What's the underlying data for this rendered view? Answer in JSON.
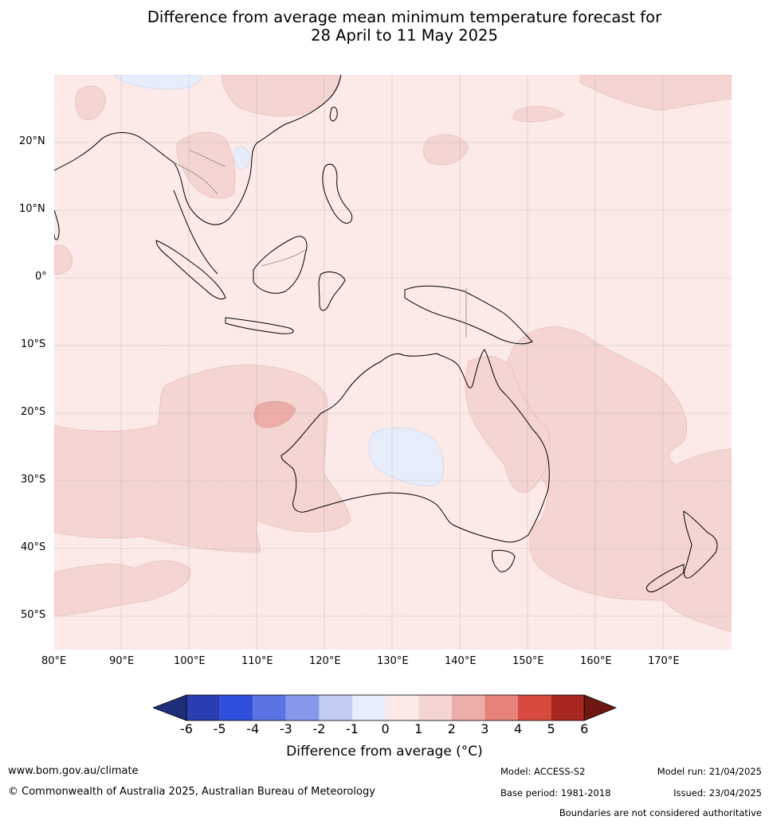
{
  "title": {
    "line1": "Difference from average mean minimum temperature forecast for",
    "line2": "28 April to 11 May 2025"
  },
  "map": {
    "lon_labels": [
      "80°E",
      "90°E",
      "100°E",
      "110°E",
      "120°E",
      "130°E",
      "140°E",
      "150°E",
      "160°E",
      "170°E"
    ],
    "lat_labels": [
      "20°N",
      "10°N",
      "0°",
      "10°S",
      "20°S",
      "30°S",
      "40°S",
      "50°S"
    ],
    "colors": {
      "bg_0_1": "#fbeae8",
      "c_1_2": "#f5d5d1",
      "c_2_3": "#ecaca8",
      "neg_0_1": "#e8edfb",
      "coast": "#000000",
      "border": "#888888",
      "grid": "#999999"
    }
  },
  "colorbar": {
    "ticks": [
      "-6",
      "-5",
      "-4",
      "-3",
      "-2",
      "-1",
      "0",
      "1",
      "2",
      "3",
      "4",
      "5",
      "6"
    ],
    "colors": [
      "#1f2e7a",
      "#2a3eb1",
      "#2f4fdc",
      "#5b74e3",
      "#8798ea",
      "#c2cbf4",
      "#e8edfb",
      "#fbeae8",
      "#f5d5d1",
      "#ecaca8",
      "#e5837b",
      "#d84a40",
      "#a8271f",
      "#6e1710"
    ],
    "label": "Difference from average (°C)"
  },
  "footer": {
    "website": "www.bom.gov.au/climate",
    "copyright": "© Commonwealth of Australia 2025, Australian Bureau of Meteorology",
    "model": "Model: ACCESS-S2",
    "model_run": "Model run: 21/04/2025",
    "base_period": "Base period: 1981-2018",
    "issued": "Issued: 23/04/2025",
    "boundaries_note": "Boundaries are not considered authoritative"
  }
}
